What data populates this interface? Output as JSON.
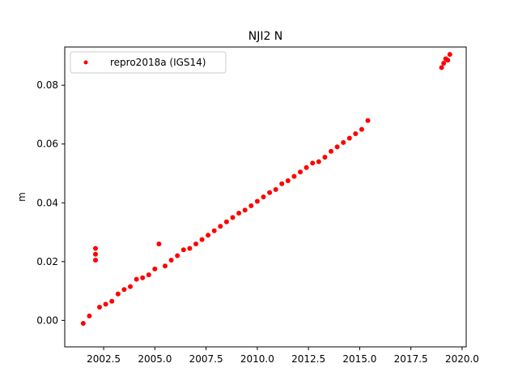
{
  "chart_data": {
    "type": "scatter",
    "title": "NJI2 N",
    "xlabel": "",
    "ylabel": "m",
    "xlim": [
      2000.6,
      2020.2
    ],
    "ylim": [
      -0.009,
      0.093
    ],
    "xticks": [
      2002.5,
      2005.0,
      2007.5,
      2010.0,
      2012.5,
      2015.0,
      2017.5,
      2020.0
    ],
    "xtick_labels": [
      "2002.5",
      "2005.0",
      "2007.5",
      "2010.0",
      "2012.5",
      "2015.0",
      "2017.5",
      "2020.0"
    ],
    "yticks": [
      0.0,
      0.02,
      0.04,
      0.06,
      0.08
    ],
    "ytick_labels": [
      "0.00",
      "0.02",
      "0.04",
      "0.06",
      "0.08"
    ],
    "grid": false,
    "legend_position": "top-left",
    "series": [
      {
        "name": "repro2018a (IGS14)",
        "color": "#ff0000",
        "marker": "circle",
        "x": [
          2001.5,
          2001.8,
          2002.1,
          2002.1,
          2002.1,
          2002.3,
          2002.6,
          2002.9,
          2003.2,
          2003.5,
          2003.8,
          2004.1,
          2004.4,
          2004.7,
          2005.0,
          2005.2,
          2005.5,
          2005.8,
          2006.1,
          2006.4,
          2006.7,
          2007.0,
          2007.3,
          2007.6,
          2007.9,
          2008.2,
          2008.5,
          2008.8,
          2009.1,
          2009.4,
          2009.7,
          2010.0,
          2010.3,
          2010.6,
          2010.9,
          2011.2,
          2011.5,
          2011.8,
          2012.1,
          2012.4,
          2012.7,
          2013.0,
          2013.3,
          2013.6,
          2013.9,
          2014.2,
          2014.5,
          2014.8,
          2015.1,
          2015.4,
          2019.0,
          2019.1,
          2019.2,
          2019.3,
          2019.4
        ],
        "y": [
          -0.001,
          0.0015,
          0.0245,
          0.0225,
          0.0205,
          0.0045,
          0.0055,
          0.0065,
          0.009,
          0.0105,
          0.0115,
          0.014,
          0.0145,
          0.0155,
          0.0175,
          0.026,
          0.0185,
          0.0205,
          0.022,
          0.024,
          0.0245,
          0.026,
          0.0275,
          0.029,
          0.0305,
          0.032,
          0.0335,
          0.035,
          0.0365,
          0.0375,
          0.039,
          0.0405,
          0.042,
          0.0435,
          0.0445,
          0.0465,
          0.0475,
          0.049,
          0.0505,
          0.052,
          0.0535,
          0.054,
          0.0555,
          0.0575,
          0.059,
          0.0605,
          0.062,
          0.0635,
          0.065,
          0.068,
          0.086,
          0.0875,
          0.089,
          0.0885,
          0.0905
        ]
      }
    ]
  }
}
